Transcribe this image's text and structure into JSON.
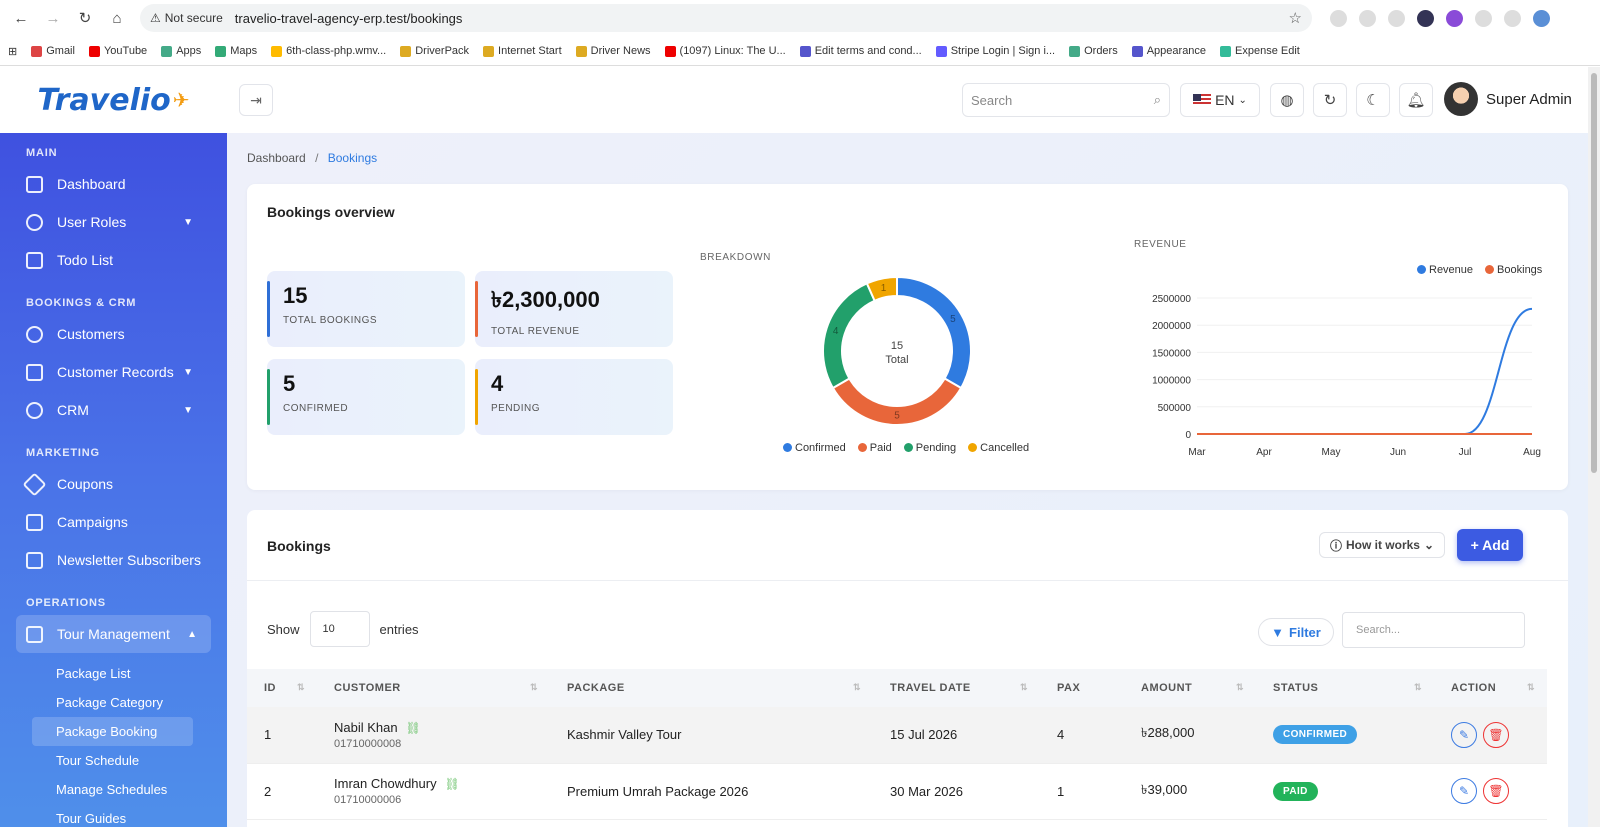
{
  "browser": {
    "url": "travelio-travel-agency-erp.test/bookings",
    "security": "Not secure",
    "bookmarks": [
      "Gmail",
      "YouTube",
      "Apps",
      "Maps",
      "6th-class-php.wmv...",
      "DriverPack",
      "Internet Start",
      "Driver News",
      "(1097) Linux: The U...",
      "Edit terms and cond...",
      "Stripe Login | Sign i...",
      "Orders",
      "Appearance",
      "Expense Edit"
    ]
  },
  "header": {
    "logo": "Travelio",
    "search_placeholder": "Search",
    "lang": "EN",
    "user_name": "Super Admin"
  },
  "sidebar": {
    "sections": {
      "main": "MAIN",
      "bookings": "BOOKINGS & CRM",
      "marketing": "MARKETING",
      "operations": "OPERATIONS"
    },
    "items": {
      "dashboard": "Dashboard",
      "user_roles": "User Roles",
      "todo": "Todo List",
      "customers": "Customers",
      "customer_records": "Customer Records",
      "crm": "CRM",
      "coupons": "Coupons",
      "campaigns": "Campaigns",
      "newsletter": "Newsletter Subscribers",
      "tour_management": "Tour Management"
    },
    "sub_items": [
      "Package List",
      "Package Category",
      "Package Booking",
      "Tour Schedule",
      "Manage Schedules",
      "Tour Guides"
    ]
  },
  "breadcrumb": {
    "home": "Dashboard",
    "current": "Bookings",
    "sep": "/"
  },
  "overview": {
    "title": "Bookings overview",
    "stats": [
      {
        "value": "15",
        "label": "TOTAL BOOKINGS",
        "color": "#2f6fd6"
      },
      {
        "value": "৳2,300,000",
        "label": "TOTAL REVENUE",
        "color": "#e8663a"
      },
      {
        "value": "5",
        "label": "CONFIRMED",
        "color": "#22a06b"
      },
      {
        "value": "4",
        "label": "PENDING",
        "color": "#f0a500"
      }
    ],
    "breakdown_title": "BREAKDOWN",
    "donut_center_value": "15",
    "donut_center_label": "Total",
    "revenue_title": "REVENUE"
  },
  "chart_data": [
    {
      "type": "pie",
      "title": "BREAKDOWN",
      "categories": [
        "Confirmed",
        "Paid",
        "Pending",
        "Cancelled"
      ],
      "values": [
        5,
        5,
        4,
        1
      ],
      "colors": [
        "#2f7be0",
        "#e8663a",
        "#22a06b",
        "#f0a500"
      ],
      "legend": "bottom"
    },
    {
      "type": "line",
      "title": "REVENUE",
      "x": [
        "Mar",
        "Apr",
        "May",
        "Jun",
        "Jul",
        "Aug"
      ],
      "series": [
        {
          "name": "Revenue",
          "values": [
            0,
            0,
            0,
            0,
            0,
            2300000
          ],
          "color": "#2f7be0"
        },
        {
          "name": "Bookings",
          "values": [
            0,
            0,
            0,
            0,
            0,
            15
          ],
          "color": "#e8663a"
        }
      ],
      "yticks": [
        "0",
        "500000",
        "1000000",
        "1500000",
        "2000000",
        "2500000"
      ],
      "ylim": [
        0,
        2500000
      ],
      "legend": "top-right"
    }
  ],
  "bookings": {
    "title": "Bookings",
    "how_label": "How it works",
    "add_label": "+ Add",
    "show_label": "Show",
    "entries_value": "10",
    "entries_label": "entries",
    "filter_label": "Filter",
    "search_placeholder": "Search...",
    "columns": [
      "ID",
      "CUSTOMER",
      "PACKAGE",
      "TRAVEL DATE",
      "PAX",
      "AMOUNT",
      "STATUS",
      "ACTION"
    ],
    "rows": [
      {
        "id": "1",
        "name": "Nabil Khan",
        "phone": "01710000008",
        "package": "Kashmir Valley Tour",
        "date": "15 Jul 2026",
        "pax": "4",
        "amount": "৳288,000",
        "status": "CONFIRMED",
        "status_color": "#3ea0e6"
      },
      {
        "id": "2",
        "name": "Imran Chowdhury",
        "phone": "01710000006",
        "package": "Premium Umrah Package 2026",
        "date": "30 Mar 2026",
        "pax": "1",
        "amount": "৳39,000",
        "status": "PAID",
        "status_color": "#22b35a"
      }
    ]
  }
}
